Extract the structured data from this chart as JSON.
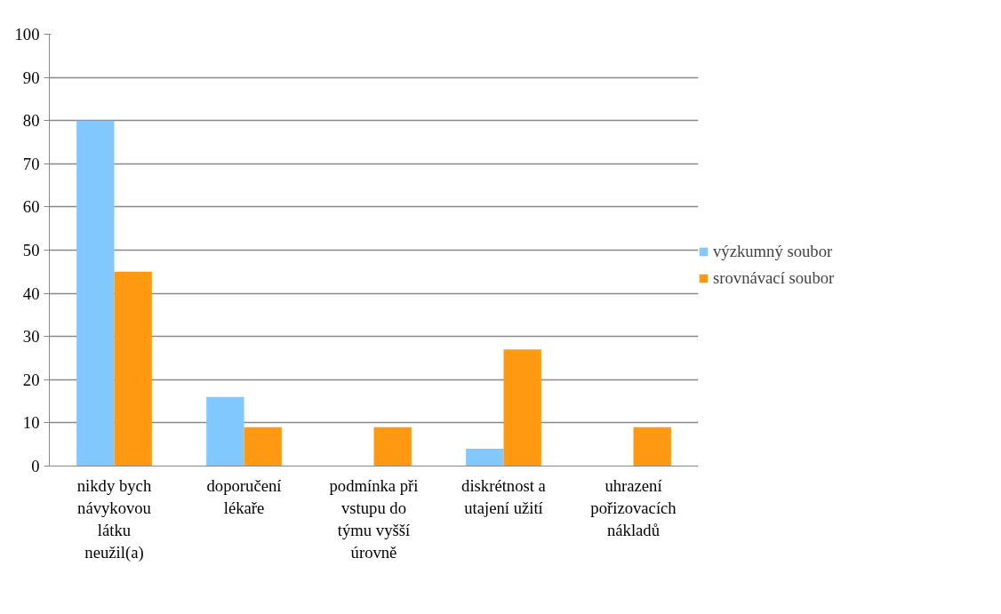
{
  "chart_data": {
    "type": "bar",
    "categories": [
      "nikdy bych návykovou látku neužil(a)",
      "doporučení lékaře",
      "podmínka při vstupu do týmu vyšší úrovně",
      "diskrétnost a utajení užití",
      "uhrazení pořizovacích nákladů"
    ],
    "series": [
      {
        "name": "výzkumný soubor",
        "color": "#80c8ff",
        "values": [
          80,
          16,
          0,
          4,
          0
        ]
      },
      {
        "name": "srovnávací soubor",
        "color": "#ff9912",
        "values": [
          45,
          9,
          9,
          27,
          9
        ]
      }
    ],
    "ylim": [
      0,
      100
    ],
    "yticks": [
      0,
      10,
      20,
      30,
      40,
      50,
      60,
      70,
      80,
      90,
      100
    ],
    "grid": "y",
    "legend": "right"
  }
}
